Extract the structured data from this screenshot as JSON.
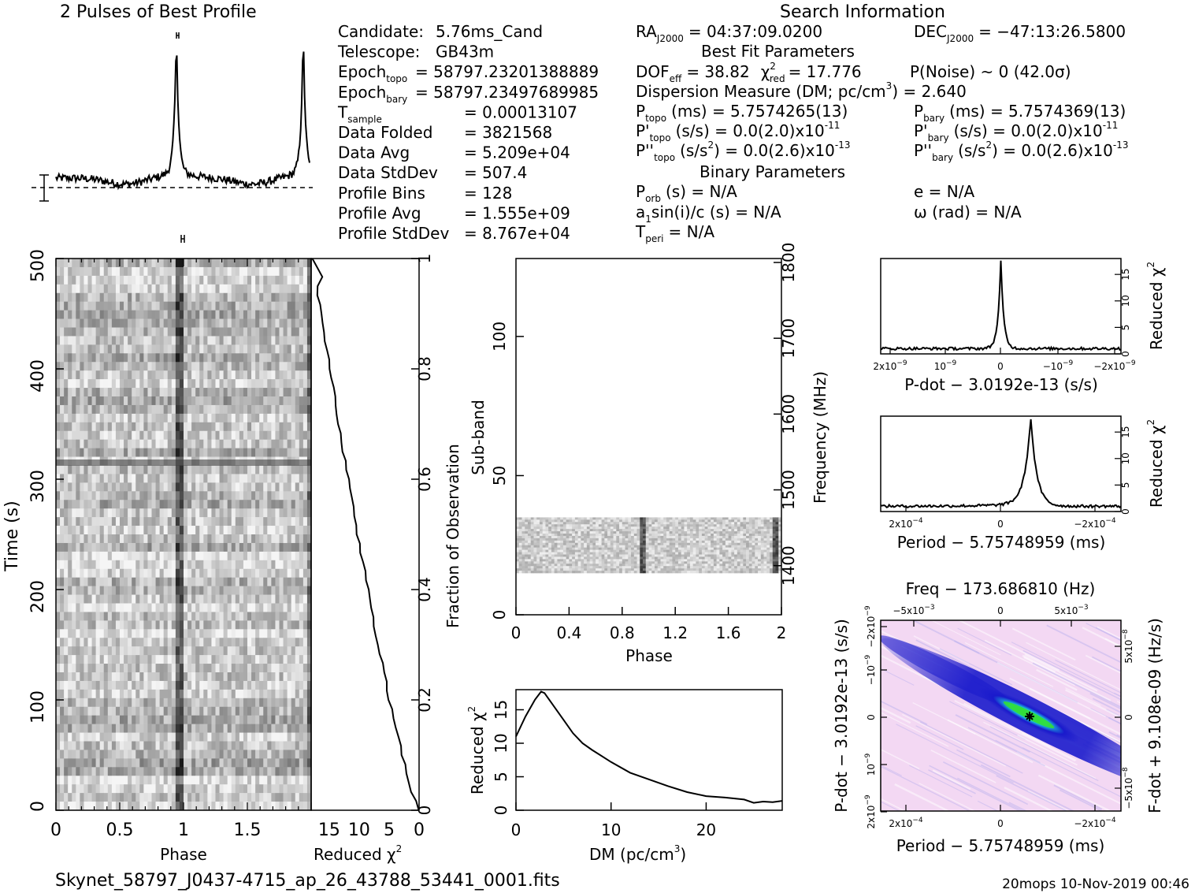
{
  "header": {
    "profile_title": "2 Pulses of Best Profile",
    "search_title": "Search Information"
  },
  "info_left": [
    {
      "label": "Candidate:",
      "value": "5.76ms_Cand"
    },
    {
      "label": "Telescope:",
      "value": "GB43m"
    },
    {
      "label": "Epoch",
      "sub": "topo",
      "value": "= 58797.23201388889"
    },
    {
      "label": "Epoch",
      "sub": "bary",
      "value": "= 58797.23497689985"
    },
    {
      "label": "T",
      "sub": "sample",
      "value": "=   0.00013107"
    },
    {
      "label": "Data Folded",
      "value": "=   3821568"
    },
    {
      "label": "Data Avg",
      "value": "=   5.209e+04"
    },
    {
      "label": "Data StdDev",
      "value": "=   507.4"
    },
    {
      "label": "Profile Bins",
      "value": "=   128"
    },
    {
      "label": "Profile Avg",
      "value": "=   1.555e+09"
    },
    {
      "label": "Profile StdDev",
      "value": "=   8.767e+04"
    }
  ],
  "info_mid": {
    "ra": "RA",
    "ra_sub": "J2000",
    "ra_value": "= 04:37:09.0200",
    "best_fit_title": "Best Fit Parameters",
    "dof": "DOF",
    "dof_sub": "eff",
    "dof_value": "= 38.82",
    "chi": "χ",
    "chi_sup": "2",
    "chi_sub": "red",
    "chi_value": "= 17.776",
    "pnoise": "P(Noise) ~ 0    (42.0σ)",
    "dm_line": "Dispersion Measure (DM; pc/cm",
    "dm_sup": "3",
    "dm_end": ") = 2.640",
    "ptopo": "P",
    "ptopo_sub": "topo",
    "ptopo_value": "(ms) =  5.7574265(13)",
    "pdtopo": "P'",
    "pdtopo_sub": "topo",
    "pdtopo_value": "(s/s) = 0.0(2.0)x10",
    "pdtopo_exp": "-11",
    "pddtopo": "P''",
    "pddtopo_sub": "topo",
    "pddtopo_value": "(s/s",
    "pddtopo_sup": "2",
    "pddtopo_end": ") = 0.0(2.6)x10",
    "pddtopo_exp": "-13",
    "binary_title": "Binary Parameters",
    "porb": "P",
    "porb_sub": "orb",
    "porb_value": "(s) = N/A",
    "a1": "a",
    "a1_sub": "1",
    "a1_value": "sin(i)/c (s) = N/A",
    "tperi": "T",
    "tperi_sub": "peri",
    "tperi_value": "= N/A"
  },
  "info_right": {
    "dec": "DEC",
    "dec_sub": "J2000",
    "dec_value": "= −47:13:26.5800",
    "pbary": "P",
    "pbary_sub": "bary",
    "pbary_value": "(ms) =  5.7574369(13)",
    "pdbary": "P'",
    "pdbary_sub": "bary",
    "pdbary_value": "(s/s) = 0.0(2.0)x10",
    "pdbary_exp": "-11",
    "pddbary": "P''",
    "pddbary_sub": "bary",
    "pddbary_value": "(s/s",
    "pddbary_sup": "2",
    "pddbary_end": ") = 0.0(2.6)x10",
    "pddbary_exp": "-13",
    "ecc": "e = N/A",
    "omega": "ω (rad) = N/A"
  },
  "footer": {
    "filename": "Skynet_58797_J0437-4715_ap_26_43788_53441_0001.fits",
    "stamp": "20mops 10-Nov-2019 00:46"
  },
  "colors": {
    "grayscale_dark": "#1a1a1a",
    "grayscale_light": "#f2f2f2",
    "pp_bg": "#f3d8f3",
    "pp_blue": "#1a1acc",
    "pp_cyan": "#1ae0e0",
    "pp_green": "#33dd33"
  },
  "chart_data": [
    {
      "type": "line",
      "id": "profile",
      "title": "2 Pulses of Best Profile",
      "xlabel": "",
      "ylabel": "",
      "x_range": [
        0,
        2
      ],
      "peaks_phase": [
        0.95,
        1.95
      ],
      "peak_value": 1.0,
      "baseline": 0.12
    },
    {
      "type": "heatmap",
      "id": "time-phase",
      "xlabel": "Phase",
      "ylabel": "Time (s)",
      "xlim": [
        0,
        2
      ],
      "ylim": [
        0,
        500
      ],
      "x_ticks": [
        "0",
        "0.5",
        "1",
        "1.5"
      ],
      "y_ticks": [
        "0",
        "100",
        "200",
        "300",
        "400",
        "500"
      ],
      "pulse_phase": 0.97
    },
    {
      "type": "line",
      "id": "cumulative-chi2",
      "xlabel": "Reduced χ",
      "xlabel_sup": "2",
      "x_ticks": [
        "15",
        "10",
        "5",
        "0"
      ],
      "y2label": "Fraction of Observation",
      "y2_ticks": [
        "0",
        "0.2",
        "0.4",
        "0.6",
        "0.8",
        "1"
      ],
      "xlim": [
        18,
        0
      ],
      "ylim": [
        0,
        1
      ]
    },
    {
      "type": "heatmap",
      "id": "subband-phase",
      "xlabel": "Phase",
      "ylabel": "Sub-band",
      "y2label": "Frequency (MHz)",
      "xlim": [
        0,
        2
      ],
      "ylim": [
        0,
        128
      ],
      "x_ticks": [
        "0",
        "0.4",
        "0.8",
        "1.2",
        "1.6",
        "2"
      ],
      "y_ticks": [
        "0",
        "50",
        "100"
      ],
      "y2_ticks": [
        "1400",
        "1500",
        "1600",
        "1700",
        "1800"
      ],
      "band_subbands": [
        15,
        35
      ],
      "pulse_phases": [
        0.96,
        1.96
      ]
    },
    {
      "type": "line",
      "id": "dm-chi2",
      "xlabel": "DM (pc/cm",
      "xlabel_sup": "3",
      "xlabel_end": ")",
      "ylabel": "Reduced χ",
      "ylabel_sup": "2",
      "xlim": [
        0,
        28
      ],
      "ylim": [
        0,
        18
      ],
      "x_ticks": [
        "0",
        "10",
        "20"
      ],
      "y_ticks": [
        "0",
        "5",
        "10",
        "15"
      ],
      "x": [
        0,
        1,
        2,
        2.64,
        3,
        4,
        5,
        6,
        7,
        8,
        10,
        12,
        14,
        16,
        18,
        20,
        22,
        24,
        25,
        26,
        27,
        28
      ],
      "y": [
        11,
        14,
        16.5,
        17.7,
        17.5,
        15.5,
        13.5,
        11.5,
        10,
        9,
        7.2,
        5.6,
        4.6,
        3.6,
        2.7,
        2.1,
        1.9,
        1.6,
        1.1,
        1.3,
        1.2,
        1.4
      ]
    },
    {
      "type": "line",
      "id": "pdot-chi2",
      "xlabel": "P-dot − 3.0192e-13 (s/s)",
      "ylabel": "Reduced χ",
      "ylabel_sup": "2",
      "xlim": [
        2e-09,
        -2e-09
      ],
      "ylim": [
        0,
        18
      ],
      "x_ticks": [
        "2x10",
        "10",
        "0",
        "−10",
        "−2x10"
      ],
      "x_ticks_exp": "−9",
      "y_ticks": [
        "0",
        "5",
        "10",
        "15"
      ],
      "peak_x": 0,
      "peak_y": 17.5
    },
    {
      "type": "line",
      "id": "period-chi2",
      "xlabel": "Period − 5.75748959 (ms)",
      "ylabel": "Reduced χ",
      "ylabel_sup": "2",
      "xlim": [
        0.0003,
        -0.0003
      ],
      "ylim": [
        0,
        18
      ],
      "x_ticks": [
        "2x10",
        "0",
        "−2x10"
      ],
      "x_ticks_exp": "−4",
      "y_ticks": [
        "0",
        "5",
        "10",
        "15"
      ],
      "peak_x": -7.5e-05,
      "peak_y": 17.6
    },
    {
      "type": "heatmap",
      "id": "p-pdot",
      "title": "Freq − 173.686810 (Hz)",
      "xlabel": "Period − 5.75748959 (ms)",
      "ylabel": "P-dot − 3.0192e-13 (s/s)",
      "y2label": "F-dot + 9.108e-09 (Hz/s)",
      "x_ticks": [
        "2x10",
        "0",
        "−2x10"
      ],
      "x_ticks_exp": "−4",
      "top_ticks": [
        "−5x10",
        "0",
        "5x10"
      ],
      "top_ticks_exp": "−3",
      "y_ticks": [
        "2x10",
        "10",
        "0",
        "−10",
        "−2x10"
      ],
      "y_ticks_exp": "−9",
      "y2_ticks": [
        "−5x10",
        "0",
        "5x10"
      ],
      "y2_ticks_exp": "−8"
    }
  ]
}
